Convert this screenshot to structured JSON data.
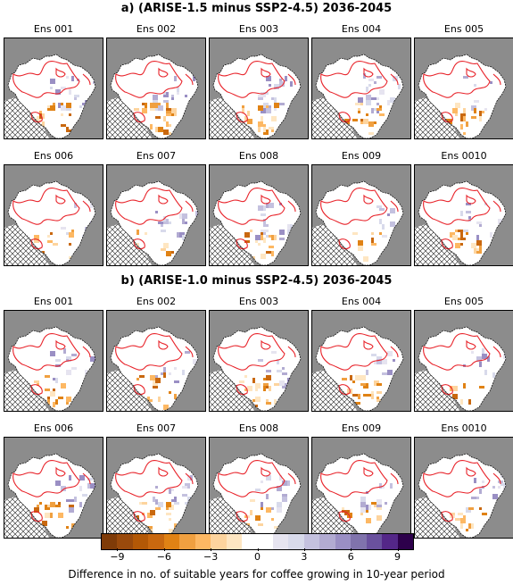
{
  "sections": [
    {
      "title": "a) (ARISE-1.5 minus SSP2-4.5) 2036-2045",
      "panels": [
        "Ens 001",
        "Ens 002",
        "Ens 003",
        "Ens 004",
        "Ens 005",
        "Ens 006",
        "Ens 007",
        "Ens 008",
        "Ens 009",
        "Ens 0010"
      ]
    },
    {
      "title": "b) (ARISE-1.0 minus SSP2-4.5) 2036-2045",
      "panels": [
        "Ens 001",
        "Ens 002",
        "Ens 003",
        "Ens 004",
        "Ens 005",
        "Ens 006",
        "Ens 007",
        "Ens 008",
        "Ens 009",
        "Ens 0010"
      ]
    }
  ],
  "colorbar": {
    "label": "Difference in no. of suitable years for coffee growing in 10-year period",
    "ticks": [
      "−9",
      "−6",
      "−3",
      "0",
      "3",
      "6",
      "9"
    ],
    "tick_values": [
      -9,
      -6,
      -3,
      0,
      3,
      6,
      9
    ],
    "range": [
      -10,
      10
    ],
    "colors": [
      "#7f3b08",
      "#9a4a0c",
      "#b35806",
      "#c9680f",
      "#e08214",
      "#f0a040",
      "#fdb863",
      "#fdd49e",
      "#fee6c2",
      "#ffffff",
      "#ffffff",
      "#e6e4f0",
      "#d8daeb",
      "#c4c1df",
      "#b2abd2",
      "#9a8fc4",
      "#8073ac",
      "#6a519e",
      "#542788",
      "#2d004b"
    ]
  },
  "map_colors": {
    "ocean": "#8c8c8c",
    "land": "#ffffff",
    "contour": "#e8232a",
    "coast": "#000000",
    "hatch": "#222222"
  }
}
